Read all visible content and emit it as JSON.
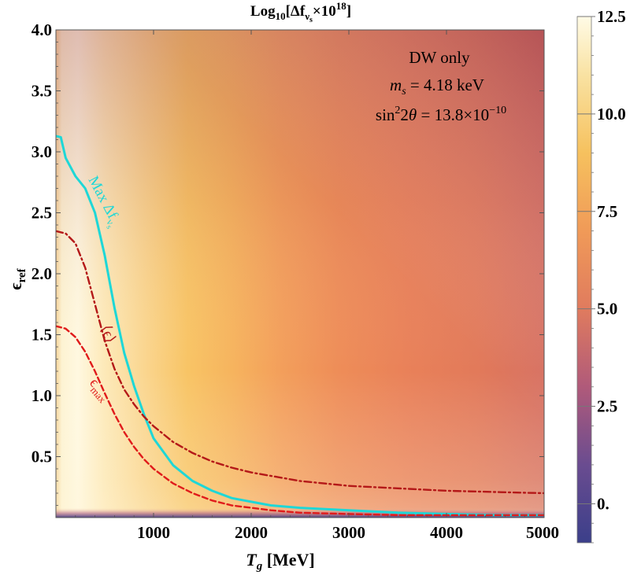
{
  "chart_data": {
    "type": "heatmap",
    "title": {
      "main": "Log",
      "sub": "10",
      "bracket_open": "[Δf",
      "nu_sub": "ν",
      "nu_subsub": "s",
      "times": "×10",
      "exp": "18",
      "bracket_close": "]"
    },
    "xlabel": {
      "var": "T",
      "sub": "g",
      "unit": " [MeV]"
    },
    "ylabel": {
      "main": "ϵ",
      "sub": "ref"
    },
    "xlim": [
      0,
      5000
    ],
    "ylim": [
      0,
      4.0
    ],
    "x_ticks": [
      {
        "value": 1000,
        "label": "1000"
      },
      {
        "value": 2000,
        "label": "2000"
      },
      {
        "value": 3000,
        "label": "3000"
      },
      {
        "value": 4000,
        "label": "4000"
      },
      {
        "value": 5000,
        "label": "5000"
      }
    ],
    "y_ticks": [
      {
        "value": 0.5,
        "label": "0.5"
      },
      {
        "value": 1.0,
        "label": "1.0"
      },
      {
        "value": 1.5,
        "label": "1.5"
      },
      {
        "value": 2.0,
        "label": "2.0"
      },
      {
        "value": 2.5,
        "label": "2.5"
      },
      {
        "value": 3.0,
        "label": "3.0"
      },
      {
        "value": 3.5,
        "label": "3.5"
      },
      {
        "value": 4.0,
        "label": "4.0"
      }
    ],
    "colorbar": {
      "range": [
        -1,
        12.5
      ],
      "ticks": [
        {
          "value": 0,
          "label": "0."
        },
        {
          "value": 2.5,
          "label": "2.5"
        },
        {
          "value": 5.0,
          "label": "5.0"
        },
        {
          "value": 7.5,
          "label": "7.5"
        },
        {
          "value": 10.0,
          "label": "10.0"
        },
        {
          "value": 12.5,
          "label": "12.5"
        }
      ],
      "stops": [
        {
          "v": -1.0,
          "color": "#3b3f8a"
        },
        {
          "v": 1.0,
          "color": "#6a4c90"
        },
        {
          "v": 3.0,
          "color": "#b05a7a"
        },
        {
          "v": 5.0,
          "color": "#e07b5e"
        },
        {
          "v": 7.0,
          "color": "#f09a58"
        },
        {
          "v": 9.0,
          "color": "#f6c15e"
        },
        {
          "v": 11.0,
          "color": "#f9e2a2"
        },
        {
          "v": 12.5,
          "color": "#fffbe6"
        }
      ]
    },
    "annotation": {
      "line1": "DW only",
      "line2": {
        "var": "m",
        "sub": "s",
        "rest": " = 4.18 keV"
      },
      "line3": {
        "pre": "sin",
        "sup1": "2",
        "mid": "2",
        "theta": "θ",
        "rest": " = 13.8×10",
        "sup2": "−10"
      }
    },
    "series": [
      {
        "name": "Max Δf_νs",
        "label": {
          "main": "Max Δf",
          "sub": "ν",
          "subsub": "s"
        },
        "color": "#1ed7d7",
        "style": "solid",
        "x": [
          0,
          50,
          100,
          200,
          300,
          400,
          500,
          600,
          700,
          800,
          900,
          1000,
          1200,
          1400,
          1600,
          1800,
          2000,
          2200,
          2500,
          3000,
          3500,
          4000,
          4500,
          5000
        ],
        "y": [
          3.13,
          3.12,
          2.95,
          2.8,
          2.7,
          2.5,
          2.15,
          1.72,
          1.35,
          1.08,
          0.85,
          0.65,
          0.43,
          0.3,
          0.22,
          0.16,
          0.13,
          0.1,
          0.08,
          0.06,
          0.04,
          0.03,
          0.02,
          0.02
        ]
      },
      {
        "name": "⟨ϵ⟩",
        "label": {
          "main": "⟨ϵ⟩"
        },
        "color": "#b41818",
        "style": "dashdot",
        "x": [
          0,
          100,
          200,
          300,
          400,
          500,
          600,
          700,
          800,
          900,
          1000,
          1200,
          1400,
          1600,
          1800,
          2000,
          2500,
          3000,
          3500,
          4000,
          4500,
          5000
        ],
        "y": [
          2.35,
          2.33,
          2.25,
          2.05,
          1.75,
          1.45,
          1.22,
          1.05,
          0.93,
          0.83,
          0.75,
          0.62,
          0.53,
          0.46,
          0.41,
          0.37,
          0.3,
          0.26,
          0.24,
          0.22,
          0.21,
          0.2
        ]
      },
      {
        "name": "ϵ_max",
        "label": {
          "main": "ϵ",
          "sub": "max"
        },
        "color": "#e01b1b",
        "style": "dashed",
        "x": [
          0,
          100,
          200,
          300,
          400,
          500,
          600,
          700,
          800,
          900,
          1000,
          1200,
          1400,
          1600,
          1800,
          2000,
          2200,
          2500,
          3000,
          3500,
          4000,
          4500,
          5000
        ],
        "y": [
          1.57,
          1.55,
          1.48,
          1.36,
          1.2,
          1.02,
          0.85,
          0.7,
          0.58,
          0.48,
          0.4,
          0.28,
          0.2,
          0.14,
          0.1,
          0.08,
          0.06,
          0.04,
          0.03,
          0.02,
          0.02,
          0.02,
          0.02
        ]
      }
    ]
  }
}
